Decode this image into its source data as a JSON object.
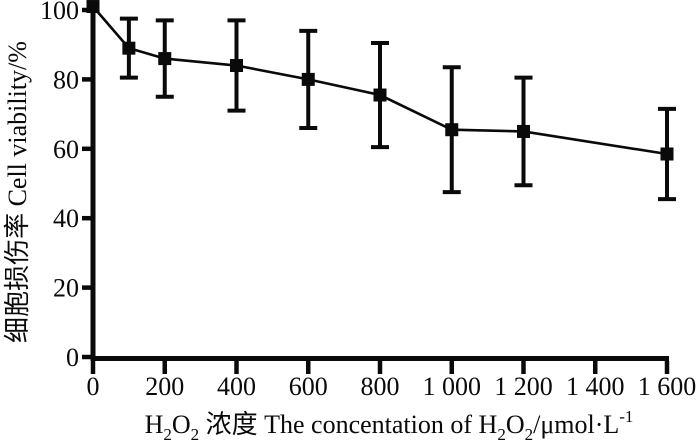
{
  "figure": {
    "background": "#ffffff",
    "ink_color": "#0a0a0a"
  },
  "chart_data": {
    "type": "line",
    "title": "",
    "series": [
      {
        "name": "Cell viability",
        "x": [
          0,
          100,
          200,
          400,
          600,
          800,
          1000,
          1200,
          1600
        ],
        "values": [
          101,
          89,
          86,
          84,
          80,
          75.5,
          65.5,
          65,
          58.5
        ],
        "errors": [
          0,
          8.5,
          11,
          13,
          14,
          15,
          18,
          15.5,
          13
        ],
        "marker": "filled-square",
        "color": "#0a0a0a"
      }
    ],
    "error_bars": true,
    "grid": false,
    "legend": "none",
    "xlabel": "H2O2 浓度 The concentation of H2O2/μmol·L-1",
    "xlabel_segments": [
      {
        "t": "H",
        "s": "n"
      },
      {
        "t": "2",
        "s": "sub"
      },
      {
        "t": "O",
        "s": "n"
      },
      {
        "t": "2",
        "s": "sub"
      },
      {
        "t": " 浓度 The concentation of H",
        "s": "n"
      },
      {
        "t": "2",
        "s": "sub"
      },
      {
        "t": "O",
        "s": "n"
      },
      {
        "t": "2",
        "s": "sub"
      },
      {
        "t": "/μmol·L",
        "s": "n"
      },
      {
        "t": "-1",
        "s": "sup"
      }
    ],
    "ylabel": "细胞损伤率 Cell viability/%",
    "xlim": [
      0,
      1600
    ],
    "ylim": [
      0,
      100
    ],
    "x_ticks": [
      0,
      200,
      400,
      600,
      800,
      1000,
      1200,
      1400,
      1600
    ],
    "x_tick_labels": [
      "0",
      "200",
      "400",
      "600",
      "800",
      "1 000",
      "1 200",
      "1 400",
      "1 600"
    ],
    "y_ticks": [
      0,
      20,
      40,
      60,
      80,
      100
    ],
    "y_tick_labels": [
      "0",
      "20",
      "40",
      "60",
      "80",
      "100"
    ]
  }
}
